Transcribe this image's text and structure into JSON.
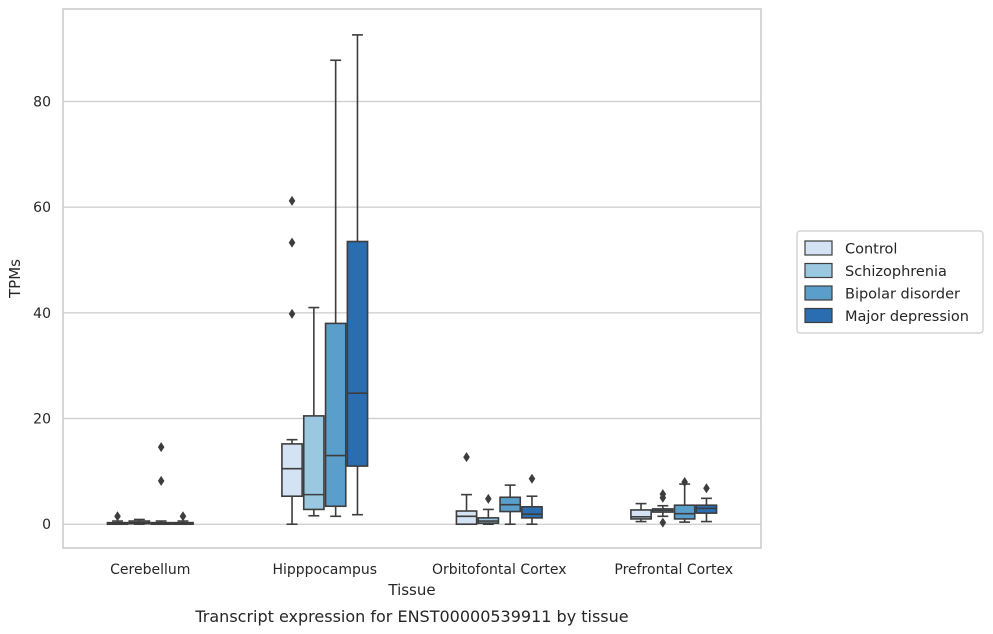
{
  "chart_data": {
    "type": "box",
    "title": "Transcript expression for ENST00000539911 by tissue",
    "xlabel": "Tissue",
    "ylabel": "TPMs",
    "ylim": [
      -4.5,
      97.5
    ],
    "yticks": [
      0,
      20,
      40,
      60,
      80
    ],
    "grid": "horizontal",
    "legend_position": "right",
    "categories": [
      "Cerebellum",
      "Hipppocampus",
      "Orbitofontal Cortex",
      "Prefrontal Cortex"
    ],
    "series": [
      {
        "name": "Control",
        "color": "#d3e3f3",
        "boxes": [
          {
            "whislo": 0.0,
            "q1": 0.0,
            "med": 0.1,
            "q3": 0.3,
            "whishi": 0.6,
            "fliers": [
              1.5
            ]
          },
          {
            "whislo": 0.0,
            "q1": 5.3,
            "med": 10.5,
            "q3": 15.2,
            "whishi": 16.0,
            "fliers": [
              39.8,
              53.3,
              61.2
            ]
          },
          {
            "whislo": 0.0,
            "q1": 0.0,
            "med": 1.5,
            "q3": 2.5,
            "whishi": 5.6,
            "fliers": [
              12.7
            ]
          },
          {
            "whislo": 0.5,
            "q1": 1.0,
            "med": 1.4,
            "q3": 2.7,
            "whishi": 3.9,
            "fliers": []
          }
        ]
      },
      {
        "name": "Schizophrenia",
        "color": "#9ac8e0",
        "boxes": [
          {
            "whislo": 0.0,
            "q1": 0.1,
            "med": 0.3,
            "q3": 0.6,
            "whishi": 0.9,
            "fliers": []
          },
          {
            "whislo": 1.6,
            "q1": 2.8,
            "med": 5.6,
            "q3": 20.5,
            "whishi": 41.0,
            "fliers": []
          },
          {
            "whislo": 0.0,
            "q1": 0.2,
            "med": 0.6,
            "q3": 1.2,
            "whishi": 2.8,
            "fliers": [
              4.8
            ]
          },
          {
            "whislo": 1.5,
            "q1": 2.3,
            "med": 2.6,
            "q3": 2.9,
            "whishi": 3.5,
            "fliers": [
              0.3,
              5.0,
              5.7
            ]
          }
        ]
      },
      {
        "name": "Bipolar disorder",
        "color": "#5a9fcc",
        "boxes": [
          {
            "whislo": 0.0,
            "q1": 0.0,
            "med": 0.1,
            "q3": 0.3,
            "whishi": 0.6,
            "fliers": [
              8.2,
              14.6
            ]
          },
          {
            "whislo": 1.5,
            "q1": 3.4,
            "med": 13.0,
            "q3": 38.0,
            "whishi": 87.8,
            "fliers": []
          },
          {
            "whislo": 0.0,
            "q1": 2.4,
            "med": 3.7,
            "q3": 5.1,
            "whishi": 7.4,
            "fliers": []
          },
          {
            "whislo": 0.4,
            "q1": 1.0,
            "med": 2.0,
            "q3": 3.6,
            "whishi": 7.6,
            "fliers": [
              8.0
            ]
          }
        ]
      },
      {
        "name": "Major depression",
        "color": "#2a6db0",
        "boxes": [
          {
            "whislo": 0.0,
            "q1": 0.0,
            "med": 0.1,
            "q3": 0.3,
            "whishi": 0.6,
            "fliers": [
              1.5
            ]
          },
          {
            "whislo": 1.8,
            "q1": 11.0,
            "med": 24.8,
            "q3": 53.5,
            "whishi": 92.6,
            "fliers": []
          },
          {
            "whislo": 0.0,
            "q1": 1.2,
            "med": 1.9,
            "q3": 3.3,
            "whishi": 5.3,
            "fliers": [
              8.6
            ]
          },
          {
            "whislo": 0.5,
            "q1": 2.1,
            "med": 3.0,
            "q3": 3.6,
            "whishi": 4.9,
            "fliers": [
              6.8
            ]
          }
        ]
      }
    ]
  }
}
